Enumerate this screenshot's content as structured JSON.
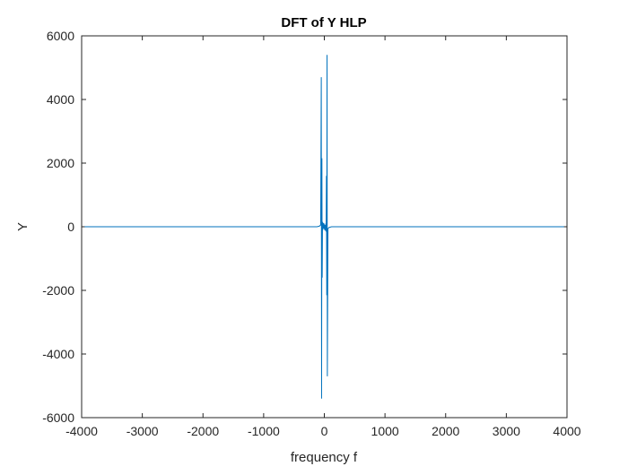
{
  "chart_data": {
    "type": "line",
    "title": "DFT of Y HLP",
    "xlabel": "frequency f",
    "ylabel": "Y",
    "xlim": [
      -4000,
      4000
    ],
    "ylim": [
      -6000,
      6000
    ],
    "xticks": [
      -4000,
      -3000,
      -2000,
      -1000,
      0,
      1000,
      2000,
      3000,
      4000
    ],
    "xtick_labels": [
      "-4000",
      "-3000",
      "-2000",
      "-1000",
      "0",
      "1000",
      "2000",
      "3000",
      "4000"
    ],
    "yticks": [
      -6000,
      -4000,
      -2000,
      0,
      2000,
      4000,
      6000
    ],
    "ytick_labels": [
      "-6000",
      "-4000",
      "-2000",
      "0",
      "2000",
      "4000",
      "6000"
    ],
    "grid": false,
    "box": true,
    "series": [
      {
        "color": "#0072BD",
        "x": [
          -3950,
          -120,
          -80,
          -60,
          -50,
          -45,
          -40,
          -35,
          -30,
          -25,
          -20,
          -15,
          -10,
          -5,
          0,
          5,
          10,
          15,
          20,
          25,
          30,
          35,
          40,
          45,
          50,
          60,
          80,
          120,
          3950
        ],
        "y": [
          0,
          0,
          20,
          60,
          4700,
          -5400,
          2150,
          -1600,
          150,
          -100,
          80,
          120,
          -60,
          100,
          0,
          -100,
          60,
          -120,
          -80,
          100,
          -150,
          1600,
          -2150,
          5400,
          -4700,
          -60,
          -20,
          0,
          0
        ]
      }
    ]
  }
}
